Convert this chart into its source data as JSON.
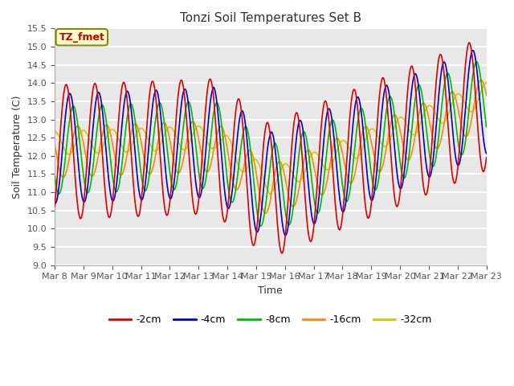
{
  "title": "Tonzi Soil Temperatures Set B",
  "xlabel": "Time",
  "ylabel": "Soil Temperature (C)",
  "ylim": [
    9.0,
    15.5
  ],
  "yticks": [
    9.0,
    9.5,
    10.0,
    10.5,
    11.0,
    11.5,
    12.0,
    12.5,
    13.0,
    13.5,
    14.0,
    14.5,
    15.0,
    15.5
  ],
  "series": {
    "-2cm": {
      "color": "#dd0000",
      "lw": 1.2
    },
    "-4cm": {
      "color": "#0000cc",
      "lw": 1.2
    },
    "-8cm": {
      "color": "#00bb00",
      "lw": 1.2
    },
    "-16cm": {
      "color": "#ff8800",
      "lw": 1.2
    },
    "-32cm": {
      "color": "#cccc00",
      "lw": 1.2
    }
  },
  "annotation_text": "TZ_fmet",
  "annotation_color": "#cc0000",
  "annotation_bg": "#ffffcc",
  "annotation_border": "#888800",
  "plot_bg": "#e8e8e8",
  "fig_bg": "#ffffff",
  "n_days": 15,
  "start_day": 8,
  "pts_per_day": 48
}
